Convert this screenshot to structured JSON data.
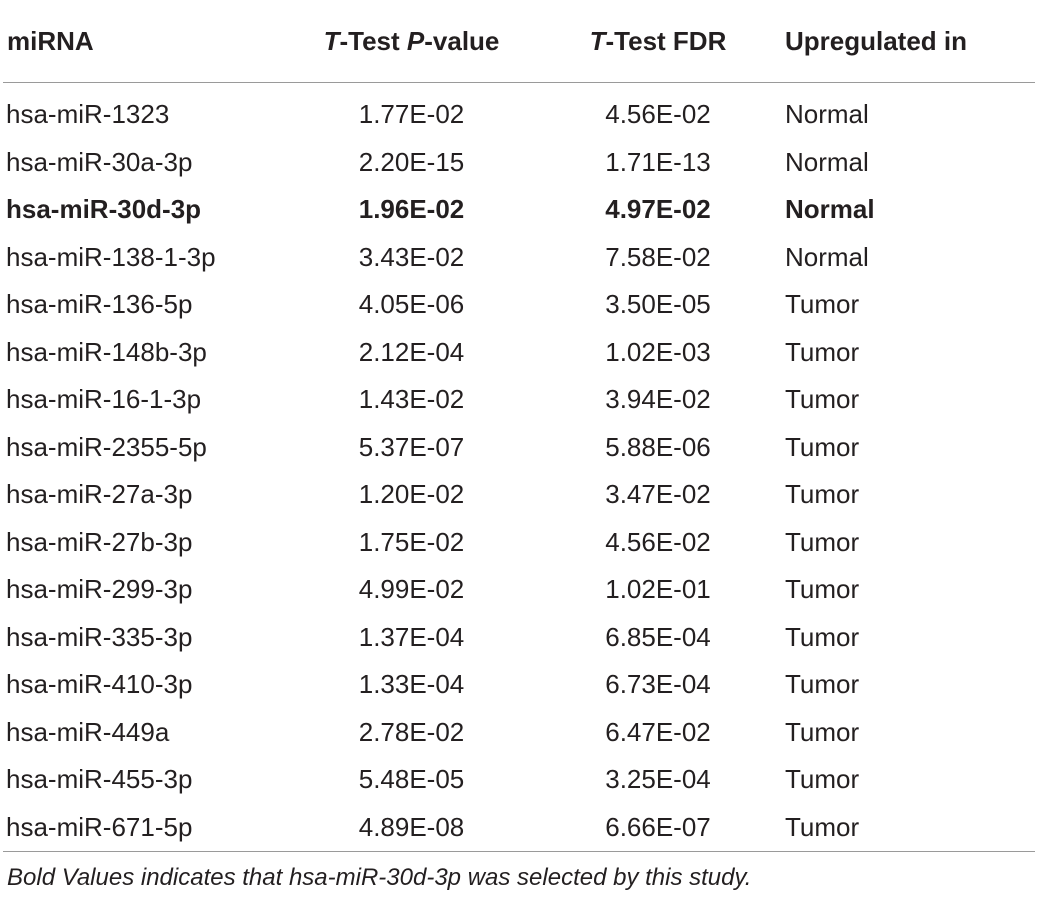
{
  "table": {
    "headers": {
      "mirna": "miRNA",
      "pvalue_t": "T",
      "pvalue_mid": "-Test ",
      "pvalue_p": "P",
      "pvalue_end": "-value",
      "fdr_t": "T",
      "fdr_rest": "-Test FDR",
      "upregulated": "Upregulated in"
    },
    "rows": [
      {
        "mirna": "hsa-miR-1323",
        "pvalue": "1.77E-02",
        "fdr": "4.56E-02",
        "upregulated": "Normal",
        "bold": false
      },
      {
        "mirna": "hsa-miR-30a-3p",
        "pvalue": "2.20E-15",
        "fdr": "1.71E-13",
        "upregulated": "Normal",
        "bold": false
      },
      {
        "mirna": "hsa-miR-30d-3p",
        "pvalue": "1.96E-02",
        "fdr": "4.97E-02",
        "upregulated": "Normal",
        "bold": true
      },
      {
        "mirna": "hsa-miR-138-1-3p",
        "pvalue": "3.43E-02",
        "fdr": "7.58E-02",
        "upregulated": "Normal",
        "bold": false
      },
      {
        "mirna": "hsa-miR-136-5p",
        "pvalue": "4.05E-06",
        "fdr": "3.50E-05",
        "upregulated": "Tumor",
        "bold": false
      },
      {
        "mirna": "hsa-miR-148b-3p",
        "pvalue": "2.12E-04",
        "fdr": "1.02E-03",
        "upregulated": "Tumor",
        "bold": false
      },
      {
        "mirna": "hsa-miR-16-1-3p",
        "pvalue": "1.43E-02",
        "fdr": "3.94E-02",
        "upregulated": "Tumor",
        "bold": false
      },
      {
        "mirna": "hsa-miR-2355-5p",
        "pvalue": "5.37E-07",
        "fdr": "5.88E-06",
        "upregulated": "Tumor",
        "bold": false
      },
      {
        "mirna": "hsa-miR-27a-3p",
        "pvalue": "1.20E-02",
        "fdr": "3.47E-02",
        "upregulated": "Tumor",
        "bold": false
      },
      {
        "mirna": "hsa-miR-27b-3p",
        "pvalue": "1.75E-02",
        "fdr": "4.56E-02",
        "upregulated": "Tumor",
        "bold": false
      },
      {
        "mirna": "hsa-miR-299-3p",
        "pvalue": "4.99E-02",
        "fdr": "1.02E-01",
        "upregulated": "Tumor",
        "bold": false
      },
      {
        "mirna": "hsa-miR-335-3p",
        "pvalue": "1.37E-04",
        "fdr": "6.85E-04",
        "upregulated": "Tumor",
        "bold": false
      },
      {
        "mirna": "hsa-miR-410-3p",
        "pvalue": "1.33E-04",
        "fdr": "6.73E-04",
        "upregulated": "Tumor",
        "bold": false
      },
      {
        "mirna": "hsa-miR-449a",
        "pvalue": "2.78E-02",
        "fdr": "6.47E-02",
        "upregulated": "Tumor",
        "bold": false
      },
      {
        "mirna": "hsa-miR-455-3p",
        "pvalue": "5.48E-05",
        "fdr": "3.25E-04",
        "upregulated": "Tumor",
        "bold": false
      },
      {
        "mirna": "hsa-miR-671-5p",
        "pvalue": "4.89E-08",
        "fdr": "6.66E-07",
        "upregulated": "Tumor",
        "bold": false
      }
    ],
    "footnote": "Bold Values indicates that hsa-miR-30d-3p was selected by this study."
  },
  "colors": {
    "text": "#231f20",
    "rule": "#9a9a9a"
  }
}
